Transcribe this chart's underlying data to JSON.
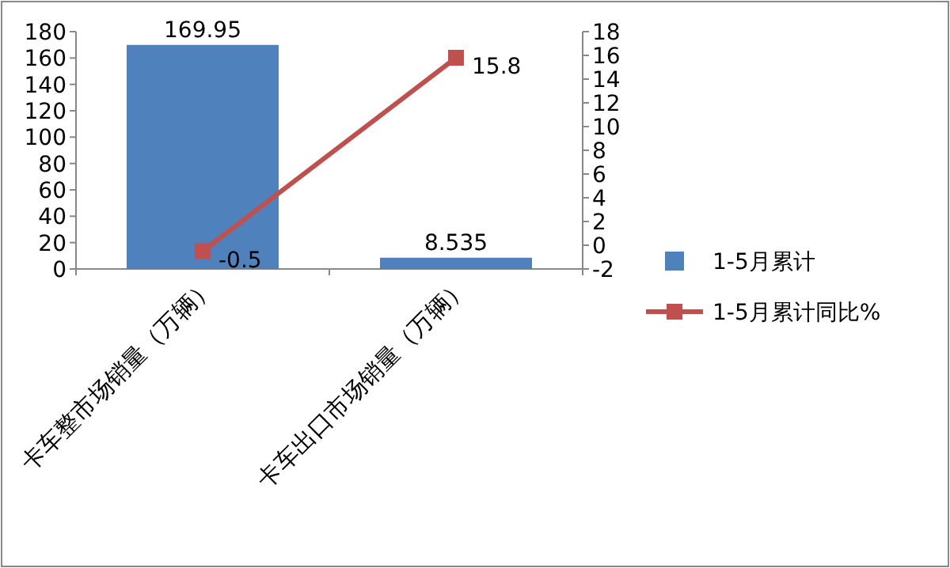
{
  "chart_data": {
    "type": "bar",
    "categories": [
      "卡车整市场销量（万辆）",
      "卡车出口市场销量（万辆）"
    ],
    "series": [
      {
        "name": "1-5月累计",
        "color": "#4f81bd",
        "values": [
          169.95,
          8.535
        ]
      },
      {
        "name": "1-5月累计同比%",
        "type": "line",
        "axis": "y2",
        "color": "#c0504d",
        "values": [
          -0.5,
          15.8
        ]
      }
    ],
    "ylim": [
      0,
      180
    ],
    "yticks": [
      0,
      20,
      40,
      60,
      80,
      100,
      120,
      140,
      160,
      180
    ],
    "y2lim": [
      -2,
      18
    ],
    "y2ticks": [
      -2,
      0,
      2,
      4,
      6,
      8,
      10,
      12,
      14,
      16,
      18
    ],
    "marker": "square",
    "data_labels": true,
    "legend": "right",
    "grid": false
  }
}
